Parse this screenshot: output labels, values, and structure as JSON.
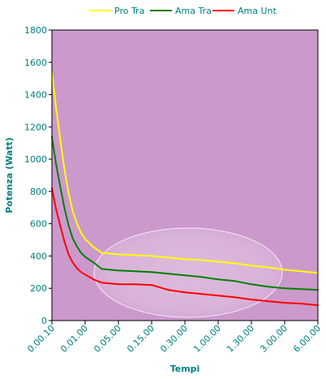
{
  "chart_data": {
    "type": "line",
    "title": "",
    "xlabel": "Tempi",
    "ylabel": "Potenza (Watt)",
    "ylim": [
      0,
      1800
    ],
    "yticks": [
      0,
      200,
      400,
      600,
      800,
      1000,
      1200,
      1400,
      1600,
      1800
    ],
    "categories": [
      "0.00.10",
      "0.01.00",
      "0.05.00",
      "0.15.00",
      "0.30.00",
      "1.00.00",
      "1.30.00",
      "3.00.00",
      "6.00.00"
    ],
    "grid": false,
    "legend_position": "top",
    "colors": {
      "plot_bg": "#cc99cc",
      "axis_text": "#008080",
      "frame": "#000000"
    },
    "series": [
      {
        "name": "Pro Tra",
        "color": "#ffff00",
        "points": [
          [
            0,
            1540
          ],
          [
            0.125,
            1320
          ],
          [
            0.25,
            1120
          ],
          [
            0.375,
            940
          ],
          [
            0.5,
            790
          ],
          [
            0.625,
            680
          ],
          [
            0.75,
            600
          ],
          [
            0.875,
            545
          ],
          [
            1.0,
            505
          ],
          [
            1.25,
            455
          ],
          [
            1.5,
            420
          ],
          [
            1.75,
            415
          ],
          [
            2.0,
            410
          ],
          [
            2.5,
            405
          ],
          [
            3.0,
            400
          ],
          [
            3.5,
            390
          ],
          [
            4.0,
            380
          ],
          [
            4.5,
            375
          ],
          [
            5.0,
            365
          ],
          [
            5.5,
            355
          ],
          [
            6.0,
            340
          ],
          [
            6.5,
            330
          ],
          [
            7.0,
            315
          ],
          [
            7.5,
            305
          ],
          [
            8.0,
            295
          ]
        ]
      },
      {
        "name": "Ama Tra",
        "color": "#008000",
        "points": [
          [
            0,
            1140
          ],
          [
            0.125,
            970
          ],
          [
            0.25,
            830
          ],
          [
            0.375,
            700
          ],
          [
            0.5,
            590
          ],
          [
            0.625,
            510
          ],
          [
            0.75,
            460
          ],
          [
            0.875,
            420
          ],
          [
            1.0,
            395
          ],
          [
            1.25,
            360
          ],
          [
            1.5,
            320
          ],
          [
            1.75,
            315
          ],
          [
            2.0,
            310
          ],
          [
            2.5,
            305
          ],
          [
            3.0,
            300
          ],
          [
            3.5,
            290
          ],
          [
            4.0,
            280
          ],
          [
            4.5,
            270
          ],
          [
            5.0,
            255
          ],
          [
            5.5,
            245
          ],
          [
            6.0,
            225
          ],
          [
            6.5,
            210
          ],
          [
            7.0,
            200
          ],
          [
            7.5,
            195
          ],
          [
            8.0,
            190
          ]
        ]
      },
      {
        "name": "Ama Unt",
        "color": "#ff0000",
        "points": [
          [
            0,
            820
          ],
          [
            0.125,
            690
          ],
          [
            0.25,
            590
          ],
          [
            0.375,
            490
          ],
          [
            0.5,
            410
          ],
          [
            0.625,
            360
          ],
          [
            0.75,
            325
          ],
          [
            0.875,
            300
          ],
          [
            1.0,
            285
          ],
          [
            1.25,
            255
          ],
          [
            1.5,
            235
          ],
          [
            1.75,
            230
          ],
          [
            2.0,
            225
          ],
          [
            2.5,
            225
          ],
          [
            3.0,
            220
          ],
          [
            3.5,
            190
          ],
          [
            4.0,
            175
          ],
          [
            4.5,
            165
          ],
          [
            5.0,
            155
          ],
          [
            5.5,
            145
          ],
          [
            6.0,
            130
          ],
          [
            6.5,
            120
          ],
          [
            7.0,
            110
          ],
          [
            7.5,
            105
          ],
          [
            8.0,
            95
          ]
        ]
      }
    ]
  }
}
